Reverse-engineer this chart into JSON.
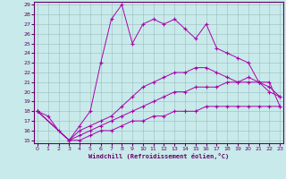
{
  "xlabel": "Windchill (Refroidissement éolien,°C)",
  "bg_color": "#c8eaea",
  "line_color": "#aa00aa",
  "grid_color": "#9bbcbc",
  "xmin": 0,
  "xmax": 23,
  "ymin": 15,
  "ymax": 29,
  "lines": [
    [
      18,
      17.5,
      16,
      15,
      16.5,
      18,
      23,
      27.5,
      29,
      25,
      27,
      27.5,
      27,
      27.5,
      26.5,
      25.5,
      27,
      24.5,
      24,
      23.5,
      23,
      21,
      20.5,
      19.5
    ],
    [
      18,
      null,
      null,
      15,
      16,
      16.5,
      17,
      17.5,
      18.5,
      19.5,
      20.5,
      21,
      21.5,
      22,
      22,
      22.5,
      22.5,
      22,
      21.5,
      21,
      21.5,
      21,
      20,
      19.5
    ],
    [
      18,
      null,
      null,
      15,
      15.5,
      16,
      16.5,
      17,
      17.5,
      18,
      18.5,
      19,
      19.5,
      20,
      20,
      20.5,
      20.5,
      20.5,
      21,
      21,
      21,
      21,
      21,
      18.5
    ],
    [
      18,
      null,
      null,
      15,
      15,
      15.5,
      16,
      16,
      16.5,
      17,
      17,
      17.5,
      17.5,
      18,
      18,
      18,
      18.5,
      18.5,
      18.5,
      18.5,
      18.5,
      18.5,
      18.5,
      18.5
    ]
  ]
}
